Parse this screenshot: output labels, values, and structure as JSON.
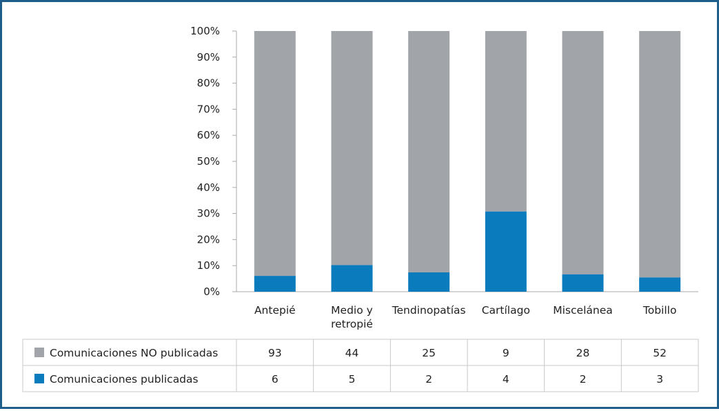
{
  "chart_data": {
    "type": "bar",
    "stacked": true,
    "normalized": true,
    "categories": [
      "Antepié",
      "Medio y retropié",
      "Tendinopatías",
      "Cartílago",
      "Miscelánea",
      "Tobillo"
    ],
    "category_lines": [
      [
        "Antepié"
      ],
      [
        "Medio y",
        "retropié"
      ],
      [
        "Tendinopatías"
      ],
      [
        "Cartílago"
      ],
      [
        "Miscelánea"
      ],
      [
        "Tobillo"
      ]
    ],
    "series": [
      {
        "name": "Comunicaciones publicadas",
        "values": [
          6,
          5,
          2,
          4,
          2,
          3
        ],
        "color": "#0a7bbd"
      },
      {
        "name": "Comunicaciones NO publicadas",
        "values": [
          93,
          44,
          25,
          9,
          28,
          52
        ],
        "color": "#a1a5aa"
      }
    ],
    "table_rows": [
      {
        "label": "Comunicaciones NO publicadas",
        "color": "#a1a5aa",
        "values": [
          93,
          44,
          25,
          9,
          28,
          52
        ]
      },
      {
        "label": "Comunicaciones publicadas",
        "color": "#0a7bbd",
        "values": [
          6,
          5,
          2,
          4,
          2,
          3
        ]
      }
    ],
    "y_ticks": [
      "0%",
      "10%",
      "20%",
      "30%",
      "40%",
      "50%",
      "60%",
      "70%",
      "80%",
      "90%",
      "100%"
    ],
    "ylim": [
      0,
      100
    ],
    "grid": false,
    "legend": "data-table-below"
  },
  "colors": {
    "frame": "#1f5d8a",
    "axis": "#aaaaaa",
    "table_border": "#c8c8c8"
  }
}
